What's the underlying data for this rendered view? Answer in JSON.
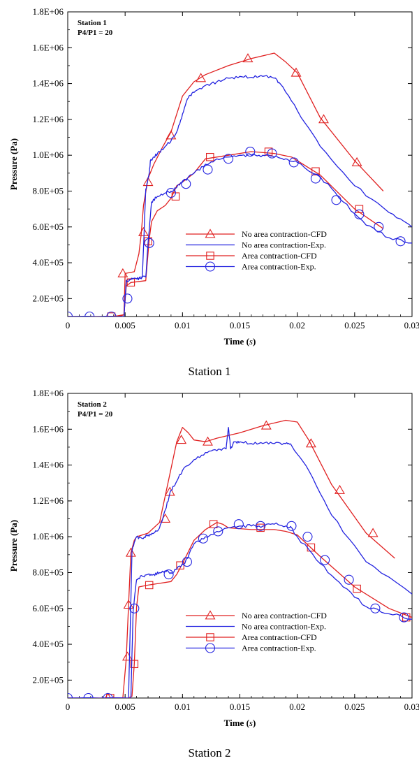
{
  "chart_data": [
    {
      "type": "line",
      "caption": "Station 1",
      "inset_lines": [
        "Station 1",
        "P4/P1 = 20"
      ],
      "xlabel": "Time (s)",
      "ylabel": "Pressure (Pa)",
      "xlim": [
        0,
        0.03
      ],
      "ylim": [
        100000,
        1800000
      ],
      "xticks": [
        0,
        0.005,
        0.01,
        0.015,
        0.02,
        0.025,
        0.03
      ],
      "xtick_labels": [
        "0",
        "0.005",
        "0.01",
        "0.015",
        "0.02",
        "0.025",
        "0.03"
      ],
      "yticks": [
        200000,
        400000,
        600000,
        800000,
        1000000,
        1200000,
        1400000,
        1600000,
        1800000
      ],
      "ytick_labels": [
        "2.0E+05",
        "4.0E+05",
        "6.0E+05",
        "8.0E+05",
        "1.0E+06",
        "1.2E+06",
        "1.4E+06",
        "1.6E+06",
        "1.8E+06"
      ],
      "grid": false,
      "legend_position": "lower-right",
      "series": [
        {
          "name": "No area contraction-CFD",
          "color": "#e02020",
          "marker": "triangle",
          "x": [
            0,
            0.0045,
            0.0049,
            0.005,
            0.0058,
            0.0062,
            0.0064,
            0.0066,
            0.007,
            0.0075,
            0.0083,
            0.009,
            0.01,
            0.011,
            0.012,
            0.014,
            0.016,
            0.018,
            0.019,
            0.02,
            0.022,
            0.025,
            0.0275
          ],
          "y": [
            100000,
            100000,
            110000,
            340000,
            350000,
            450000,
            560000,
            720000,
            870000,
            950000,
            1050000,
            1130000,
            1330000,
            1410000,
            1450000,
            1500000,
            1540000,
            1570000,
            1520000,
            1460000,
            1210000,
            970000,
            800000
          ],
          "marker_x": [
            0.0048,
            0.0066,
            0.007,
            0.009,
            0.0116,
            0.0157,
            0.0199,
            0.0223,
            0.0252
          ],
          "marker_y": [
            340000,
            570000,
            850000,
            1110000,
            1430000,
            1540000,
            1460000,
            1200000,
            960000
          ]
        },
        {
          "name": "No area contraction-Exp.",
          "color": "#2323e0",
          "marker": "none",
          "x": [
            0,
            0.0049,
            0.0051,
            0.006,
            0.0065,
            0.0068,
            0.0071,
            0.0072,
            0.0075,
            0.008,
            0.0085,
            0.009,
            0.0095,
            0.01,
            0.0105,
            0.011,
            0.012,
            0.013,
            0.014,
            0.015,
            0.016,
            0.017,
            0.018,
            0.0185,
            0.02,
            0.022,
            0.025,
            0.028,
            0.03
          ],
          "y": [
            100000,
            100000,
            300000,
            310000,
            320000,
            810000,
            900000,
            970000,
            990000,
            1020000,
            1050000,
            1080000,
            1130000,
            1230000,
            1320000,
            1350000,
            1390000,
            1410000,
            1430000,
            1440000,
            1435000,
            1440000,
            1430000,
            1400000,
            1250000,
            1050000,
            830000,
            680000,
            600000
          ]
        },
        {
          "name": "Area contraction-CFD",
          "color": "#e02020",
          "marker": "square",
          "x": [
            0,
            0.004,
            0.0049,
            0.0051,
            0.0055,
            0.0068,
            0.0071,
            0.0073,
            0.0078,
            0.0085,
            0.009,
            0.0095,
            0.01,
            0.011,
            0.012,
            0.014,
            0.016,
            0.018,
            0.0195,
            0.02,
            0.022,
            0.025,
            0.0275
          ],
          "y": [
            100000,
            100000,
            110000,
            270000,
            290000,
            300000,
            530000,
            630000,
            690000,
            720000,
            760000,
            830000,
            850000,
            900000,
            980000,
            1000000,
            1020000,
            1010000,
            990000,
            970000,
            890000,
            700000,
            590000
          ],
          "marker_x": [
            0.0038,
            0.0055,
            0.007,
            0.0094,
            0.0124,
            0.0175,
            0.0216,
            0.0254
          ],
          "marker_y": [
            100000,
            290000,
            520000,
            770000,
            990000,
            1020000,
            910000,
            700000
          ],
          "y2_note": ""
        },
        {
          "name": "Area contraction-Exp.",
          "color": "#2323e0",
          "marker": "circle",
          "x": [
            0,
            0.0049,
            0.0051,
            0.006,
            0.0068,
            0.007,
            0.0073,
            0.0078,
            0.0085,
            0.009,
            0.0095,
            0.01,
            0.011,
            0.012,
            0.013,
            0.014,
            0.015,
            0.016,
            0.017,
            0.018,
            0.019,
            0.02,
            0.022,
            0.024,
            0.026,
            0.028,
            0.03
          ],
          "y": [
            100000,
            100000,
            300000,
            310000,
            320000,
            510000,
            740000,
            770000,
            790000,
            800000,
            820000,
            850000,
            900000,
            950000,
            980000,
            990000,
            1000000,
            1000000,
            1000000,
            990000,
            980000,
            960000,
            880000,
            740000,
            610000,
            540000,
            510000
          ],
          "marker_x": [
            0,
            0.0019,
            0.0038,
            0.0052,
            0.0071,
            0.009,
            0.0103,
            0.0122,
            0.014,
            0.0159,
            0.0178,
            0.0197,
            0.0216,
            0.0234,
            0.0254,
            0.0271,
            0.029
          ],
          "marker_y": [
            100000,
            100000,
            100000,
            200000,
            510000,
            790000,
            840000,
            920000,
            980000,
            1020000,
            1010000,
            960000,
            870000,
            750000,
            670000,
            600000,
            520000
          ]
        }
      ]
    },
    {
      "type": "line",
      "caption": "Station 2",
      "inset_lines": [
        "Station 2",
        "P4/P1 = 20"
      ],
      "xlabel": "Time (s)",
      "ylabel": "Pressure (Pa)",
      "xlim": [
        0,
        0.03
      ],
      "ylim": [
        100000,
        1800000
      ],
      "xticks": [
        0,
        0.005,
        0.01,
        0.015,
        0.02,
        0.025,
        0.03
      ],
      "xtick_labels": [
        "0",
        "0.005",
        "0.01",
        "0.015",
        "0.02",
        "0.025",
        "0.03"
      ],
      "yticks": [
        200000,
        400000,
        600000,
        800000,
        1000000,
        1200000,
        1400000,
        1600000,
        1800000
      ],
      "ytick_labels": [
        "2.0E+05",
        "4.0E+05",
        "6.0E+05",
        "8.0E+05",
        "1.0E+06",
        "1.2E+06",
        "1.4E+06",
        "1.6E+06",
        "1.8E+06"
      ],
      "grid": false,
      "legend_position": "lower-right",
      "series": [
        {
          "name": "No area contraction-CFD",
          "color": "#e02020",
          "marker": "triangle",
          "x": [
            0,
            0.0048,
            0.0051,
            0.0053,
            0.0055,
            0.0058,
            0.006,
            0.007,
            0.008,
            0.0085,
            0.009,
            0.0095,
            0.01,
            0.0105,
            0.011,
            0.012,
            0.013,
            0.015,
            0.017,
            0.019,
            0.02,
            0.021,
            0.023,
            0.026,
            0.0285
          ],
          "y": [
            100000,
            100000,
            320000,
            620000,
            910000,
            980000,
            1000000,
            1020000,
            1080000,
            1230000,
            1380000,
            1530000,
            1610000,
            1580000,
            1540000,
            1530000,
            1550000,
            1580000,
            1620000,
            1650000,
            1640000,
            1540000,
            1290000,
            1020000,
            880000
          ],
          "marker_x": [
            0.0035,
            0.0052,
            0.0053,
            0.0055,
            0.0085,
            0.0089,
            0.0099,
            0.0122,
            0.0173,
            0.0212,
            0.0237,
            0.0266
          ],
          "marker_y": [
            100000,
            330000,
            620000,
            910000,
            1100000,
            1250000,
            1540000,
            1530000,
            1620000,
            1520000,
            1260000,
            1020000
          ]
        },
        {
          "name": "No area contraction-Exp.",
          "color": "#2323e0",
          "marker": "none",
          "x": [
            0,
            0.0053,
            0.0056,
            0.006,
            0.0065,
            0.007,
            0.0075,
            0.008,
            0.0085,
            0.009,
            0.0095,
            0.01,
            0.011,
            0.012,
            0.013,
            0.0138,
            0.014,
            0.0142,
            0.0145,
            0.015,
            0.016,
            0.017,
            0.018,
            0.019,
            0.0195,
            0.021,
            0.023,
            0.026,
            0.03
          ],
          "y": [
            100000,
            100000,
            920000,
            1000000,
            990000,
            1010000,
            1020000,
            1050000,
            1150000,
            1260000,
            1310000,
            1370000,
            1430000,
            1470000,
            1480000,
            1490000,
            1610000,
            1490000,
            1530000,
            1530000,
            1520000,
            1520000,
            1520000,
            1520000,
            1510000,
            1370000,
            1120000,
            860000,
            680000
          ]
        },
        {
          "name": "Area contraction-CFD",
          "color": "#e02020",
          "marker": "square",
          "x": [
            0,
            0.0053,
            0.0056,
            0.0058,
            0.006,
            0.0062,
            0.007,
            0.008,
            0.009,
            0.0095,
            0.01,
            0.011,
            0.012,
            0.013,
            0.0135,
            0.014,
            0.016,
            0.018,
            0.019,
            0.0195,
            0.02,
            0.022,
            0.025,
            0.028,
            0.03
          ],
          "y": [
            100000,
            100000,
            110000,
            290000,
            610000,
            720000,
            730000,
            740000,
            750000,
            790000,
            850000,
            980000,
            1040000,
            1080000,
            1070000,
            1050000,
            1040000,
            1040000,
            1030000,
            1020000,
            1010000,
            890000,
            720000,
            600000,
            550000
          ],
          "marker_x": [
            0.0037,
            0.0058,
            0.0071,
            0.0098,
            0.0127,
            0.0168,
            0.0212,
            0.0252,
            0.0295
          ],
          "marker_y": [
            100000,
            290000,
            730000,
            840000,
            1070000,
            1050000,
            940000,
            710000,
            550000
          ]
        },
        {
          "name": "Area contraction-Exp.",
          "color": "#2323e0",
          "marker": "circle",
          "x": [
            0,
            0.0055,
            0.0057,
            0.006,
            0.0065,
            0.007,
            0.0075,
            0.008,
            0.0085,
            0.009,
            0.0095,
            0.0102,
            0.011,
            0.012,
            0.013,
            0.014,
            0.015,
            0.016,
            0.017,
            0.018,
            0.019,
            0.0195,
            0.02,
            0.022,
            0.024,
            0.026,
            0.028,
            0.03
          ],
          "y": [
            100000,
            100000,
            590000,
            760000,
            780000,
            790000,
            790000,
            800000,
            810000,
            800000,
            820000,
            850000,
            960000,
            1000000,
            1030000,
            1050000,
            1060000,
            1060000,
            1060000,
            1070000,
            1060000,
            1050000,
            1000000,
            850000,
            720000,
            610000,
            570000,
            540000
          ],
          "marker_x": [
            0,
            0.0018,
            0.0035,
            0.0058,
            0.0088,
            0.0104,
            0.0118,
            0.0131,
            0.0149,
            0.0168,
            0.0195,
            0.0209,
            0.0224,
            0.0245,
            0.0268,
            0.0293
          ],
          "marker_y": [
            100000,
            100000,
            100000,
            600000,
            790000,
            860000,
            990000,
            1030000,
            1070000,
            1060000,
            1060000,
            1000000,
            870000,
            760000,
            600000,
            550000
          ]
        }
      ]
    }
  ]
}
